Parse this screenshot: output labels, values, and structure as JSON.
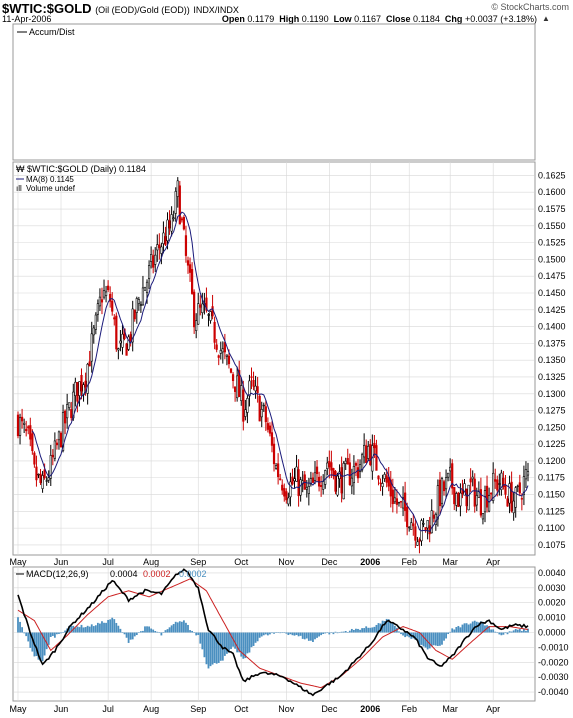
{
  "header": {
    "symbol": "$WTIC:$GOLD",
    "description": "(Oil (EOD)/Gold (EOD))",
    "exchange": "INDX/INDX",
    "date": "11-Apr-2006",
    "credit": "© StockCharts.com",
    "open_label": "Open",
    "open": "0.1179",
    "high_label": "High",
    "high": "0.1190",
    "low_label": "Low",
    "low": "0.1167",
    "close_label": "Close",
    "close": "0.1184",
    "chg_label": "Chg",
    "chg": "+0.0037 (+3.18%)"
  },
  "colors": {
    "up": "#000000",
    "down": "#cc0000",
    "ma": "#1a1a7a",
    "macd": "#000000",
    "signal": "#cc2222",
    "hist": "#4a8fc0",
    "grid": "#d8d8d8"
  },
  "chart_data": [
    {
      "type": "line",
      "panel": "indicator",
      "legend": [
        "Accum/Dist"
      ],
      "series": []
    },
    {
      "type": "candlestick",
      "panel": "price",
      "legend": [
        "$WTIC:$GOLD (Daily) 0.1184",
        "MA(8) 0.1145",
        "Volume undef"
      ],
      "x_labels": [
        "May",
        "Jun",
        "Jul",
        "Aug",
        "Sep",
        "Oct",
        "Nov",
        "Dec",
        "2006",
        "Feb",
        "Mar",
        "Apr"
      ],
      "x_positions": [
        0,
        21,
        44,
        65,
        88,
        109,
        131,
        152,
        172,
        191,
        211,
        232
      ],
      "y_ticks": [
        "0.1625",
        "0.1600",
        "0.1575",
        "0.1550",
        "0.1525",
        "0.1500",
        "0.1475",
        "0.1450",
        "0.1425",
        "0.1400",
        "0.1375",
        "0.1350",
        "0.1325",
        "0.1300",
        "0.1275",
        "0.1250",
        "0.1225",
        "0.1200",
        "0.1175",
        "0.1150",
        "0.1125",
        "0.1100",
        "0.1075"
      ],
      "ylim": [
        0.106,
        0.1645
      ],
      "x_days": 250,
      "close_anchors": [
        [
          0,
          0.126
        ],
        [
          5,
          0.123
        ],
        [
          8,
          0.118
        ],
        [
          12,
          0.116
        ],
        [
          16,
          0.119
        ],
        [
          22,
          0.125
        ],
        [
          28,
          0.13
        ],
        [
          33,
          0.133
        ],
        [
          38,
          0.14
        ],
        [
          41,
          0.145
        ],
        [
          45,
          0.144
        ],
        [
          49,
          0.136
        ],
        [
          54,
          0.138
        ],
        [
          59,
          0.144
        ],
        [
          63,
          0.147
        ],
        [
          69,
          0.152
        ],
        [
          75,
          0.155
        ],
        [
          78,
          0.16
        ],
        [
          82,
          0.15
        ],
        [
          86,
          0.142
        ],
        [
          91,
          0.142
        ],
        [
          96,
          0.139
        ],
        [
          101,
          0.135
        ],
        [
          106,
          0.132
        ],
        [
          110,
          0.128
        ],
        [
          114,
          0.131
        ],
        [
          118,
          0.128
        ],
        [
          121,
          0.126
        ],
        [
          126,
          0.119
        ],
        [
          131,
          0.116
        ],
        [
          136,
          0.117
        ],
        [
          141,
          0.115
        ],
        [
          146,
          0.117
        ],
        [
          151,
          0.12
        ],
        [
          156,
          0.117
        ],
        [
          161,
          0.118
        ],
        [
          166,
          0.119
        ],
        [
          171,
          0.122
        ],
        [
          176,
          0.119
        ],
        [
          181,
          0.116
        ],
        [
          186,
          0.113
        ],
        [
          191,
          0.112
        ],
        [
          196,
          0.109
        ],
        [
          201,
          0.111
        ],
        [
          206,
          0.115
        ],
        [
          211,
          0.117
        ],
        [
          216,
          0.114
        ],
        [
          221,
          0.116
        ],
        [
          226,
          0.114
        ],
        [
          231,
          0.116
        ],
        [
          235,
          0.117
        ],
        [
          239,
          0.115
        ],
        [
          243,
          0.114
        ],
        [
          249,
          0.1184
        ]
      ],
      "ma_period": 8
    },
    {
      "type": "line",
      "panel": "macd",
      "legend": [
        "MACD(12,26,9)",
        "0.0004",
        "0.0002",
        "0.0002"
      ],
      "series_names": [
        "MACD",
        "Signal",
        "Histogram"
      ],
      "y_ticks": [
        "0.0040",
        "0.0030",
        "0.0020",
        "0.0010",
        "0.0000",
        "-0.0010",
        "-0.0020",
        "-0.0030",
        "-0.0040"
      ],
      "ylim": [
        -0.0046,
        0.0044
      ],
      "macd_anchors": [
        [
          0,
          0.0025
        ],
        [
          6,
          0.0
        ],
        [
          12,
          -0.0022
        ],
        [
          18,
          -0.0012
        ],
        [
          26,
          0.0005
        ],
        [
          36,
          0.0019
        ],
        [
          46,
          0.0035
        ],
        [
          54,
          0.0022
        ],
        [
          62,
          0.0028
        ],
        [
          70,
          0.0026
        ],
        [
          78,
          0.004
        ],
        [
          82,
          0.0042
        ],
        [
          88,
          0.003
        ],
        [
          93,
          0.0002
        ],
        [
          100,
          -0.001
        ],
        [
          105,
          -0.0015
        ],
        [
          110,
          -0.0033
        ],
        [
          118,
          -0.0027
        ],
        [
          124,
          -0.0028
        ],
        [
          130,
          -0.003
        ],
        [
          138,
          -0.0037
        ],
        [
          144,
          -0.0042
        ],
        [
          150,
          -0.0036
        ],
        [
          157,
          -0.003
        ],
        [
          164,
          -0.002
        ],
        [
          172,
          -0.0008
        ],
        [
          180,
          0.0008
        ],
        [
          188,
          0.0002
        ],
        [
          194,
          -0.0004
        ],
        [
          200,
          -0.0017
        ],
        [
          206,
          -0.0023
        ],
        [
          212,
          -0.0016
        ],
        [
          218,
          -0.0005
        ],
        [
          224,
          0.0005
        ],
        [
          230,
          0.0008
        ],
        [
          236,
          0.0002
        ],
        [
          242,
          0.0005
        ],
        [
          249,
          0.0004
        ]
      ],
      "signal_anchors": [
        [
          0,
          0.0015
        ],
        [
          8,
          0.0008
        ],
        [
          16,
          -0.0012
        ],
        [
          24,
          -0.0002
        ],
        [
          34,
          0.0012
        ],
        [
          44,
          0.0024
        ],
        [
          54,
          0.0028
        ],
        [
          64,
          0.0024
        ],
        [
          74,
          0.003
        ],
        [
          84,
          0.0036
        ],
        [
          92,
          0.0028
        ],
        [
          100,
          0.0008
        ],
        [
          108,
          -0.0012
        ],
        [
          118,
          -0.0024
        ],
        [
          128,
          -0.0029
        ],
        [
          138,
          -0.0034
        ],
        [
          148,
          -0.0037
        ],
        [
          158,
          -0.0029
        ],
        [
          168,
          -0.0017
        ],
        [
          178,
          -0.0003
        ],
        [
          188,
          0.0004
        ],
        [
          196,
          0.0
        ],
        [
          204,
          -0.0012
        ],
        [
          212,
          -0.0018
        ],
        [
          220,
          -0.0008
        ],
        [
          230,
          0.0004
        ],
        [
          240,
          0.0004
        ],
        [
          249,
          0.0002
        ]
      ]
    }
  ]
}
